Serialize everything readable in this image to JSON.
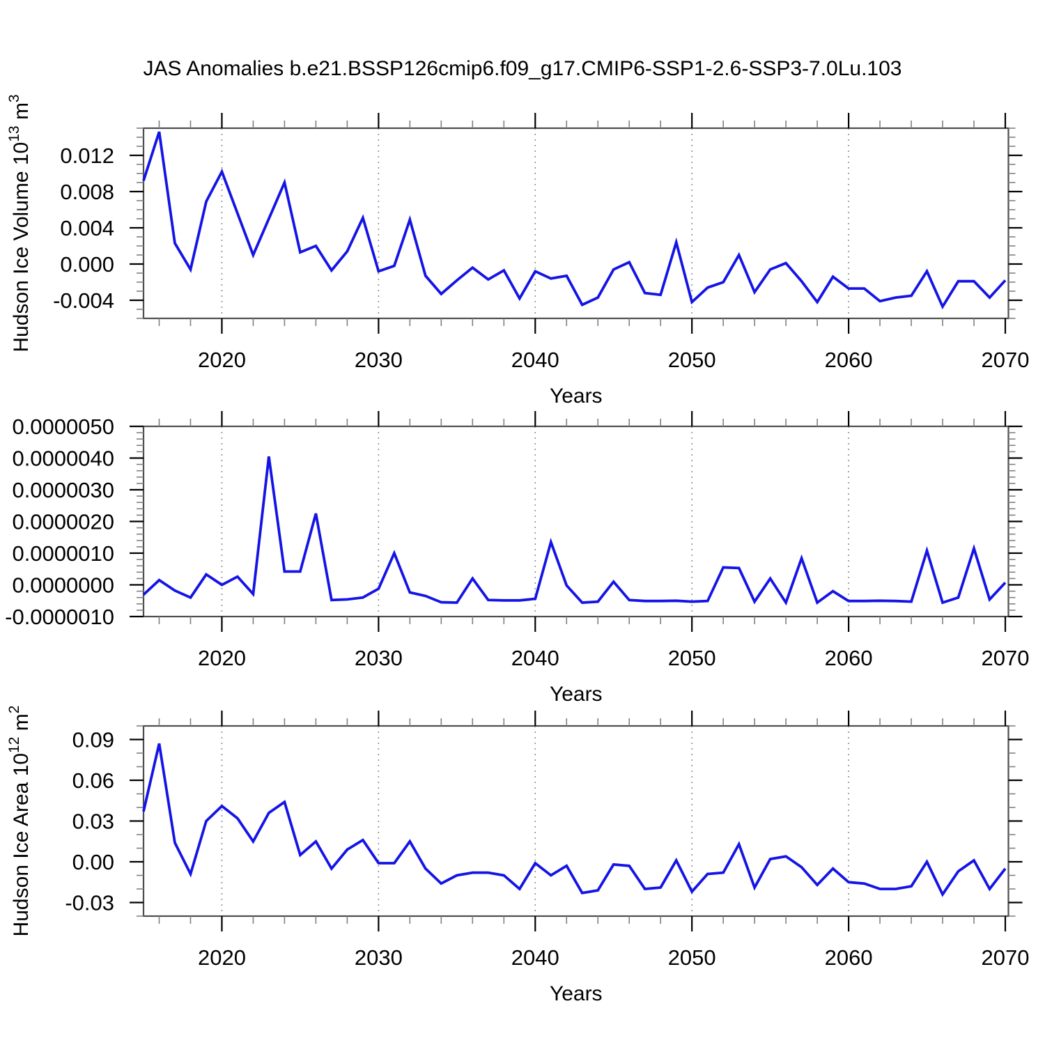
{
  "title": "JAS Anomalies b.e21.BSSP126cmip6.f09_g17.CMIP6-SSP1-2.6-SSP3-7.0Lu.103",
  "colors": {
    "line": "#1414e6",
    "frame": "#4d4d4d",
    "tick_major": "#000000",
    "tick_minor": "#808080",
    "grid": "#909090",
    "text": "#000000",
    "background": "#ffffff"
  },
  "x_axis": {
    "label": "Years",
    "range": [
      2015,
      2070.2
    ],
    "major_ticks": [
      2020,
      2030,
      2040,
      2050,
      2060,
      2070
    ],
    "minor_step": 2,
    "gridlines": [
      2020,
      2030,
      2040,
      2050,
      2060
    ]
  },
  "years": [
    2015,
    2016,
    2017,
    2018,
    2019,
    2020,
    2021,
    2022,
    2023,
    2024,
    2025,
    2026,
    2027,
    2028,
    2029,
    2030,
    2031,
    2032,
    2033,
    2034,
    2035,
    2036,
    2037,
    2038,
    2039,
    2040,
    2041,
    2042,
    2043,
    2044,
    2045,
    2046,
    2047,
    2048,
    2049,
    2050,
    2051,
    2052,
    2053,
    2054,
    2055,
    2056,
    2057,
    2058,
    2059,
    2060,
    2061,
    2062,
    2063,
    2064,
    2065,
    2066,
    2067,
    2068,
    2069,
    2070
  ],
  "chart_data": [
    {
      "type": "line",
      "name": "hudson-ice-volume",
      "ylabel": "Hudson Ice Volume 10^13 m^3",
      "ylabel_parts": [
        {
          "t": "Hudson Ice Volume 10"
        },
        {
          "t": "13",
          "sup": true
        },
        {
          "t": " m"
        },
        {
          "t": "3",
          "sup": true
        }
      ],
      "xlabel": "Years",
      "ylim": [
        -0.006,
        0.015
      ],
      "yticks": [
        {
          "v": 0.012,
          "label": "0.012"
        },
        {
          "v": 0.008,
          "label": "0.008"
        },
        {
          "v": 0.004,
          "label": "0.004"
        },
        {
          "v": 0.0,
          "label": "0.000"
        },
        {
          "v": -0.004,
          "label": "-0.004"
        }
      ],
      "y_minor_step": 0.001,
      "values": [
        0.0092,
        0.0146,
        0.0023,
        -0.0006,
        0.0069,
        0.0102,
        0.0056,
        0.001,
        0.005,
        0.009,
        0.0013,
        0.002,
        -0.0007,
        0.0014,
        0.0051,
        -0.0008,
        -0.0002,
        0.0049,
        -0.0013,
        -0.0033,
        -0.0018,
        -0.0004,
        -0.0017,
        -0.0007,
        -0.0038,
        -0.0008,
        -0.0016,
        -0.0013,
        -0.0045,
        -0.0037,
        -0.0006,
        0.0002,
        -0.0032,
        -0.0034,
        0.0024,
        -0.0042,
        -0.0026,
        -0.002,
        0.001,
        -0.0031,
        -0.0006,
        0.0001,
        -0.0019,
        -0.0042,
        -0.0014,
        -0.0027,
        -0.0027,
        -0.0041,
        -0.0037,
        -0.0035,
        -0.0008,
        -0.0047,
        -0.0019,
        -0.0019,
        -0.0037,
        -0.0018
      ]
    },
    {
      "type": "line",
      "name": "hudson-ice-middle-variable",
      "ylabel": "",
      "ylabel_parts": [],
      "xlabel": "Years",
      "ylim": [
        -1e-06,
        5e-06
      ],
      "yticks": [
        {
          "v": 5e-06,
          "label": "0.0000050"
        },
        {
          "v": 4e-06,
          "label": "0.0000040"
        },
        {
          "v": 3e-06,
          "label": "0.0000030"
        },
        {
          "v": 2e-06,
          "label": "0.0000020"
        },
        {
          "v": 1e-06,
          "label": "0.0000010"
        },
        {
          "v": 0.0,
          "label": "0.0000000"
        },
        {
          "v": -1e-06,
          "label": "-0.0000010"
        }
      ],
      "y_minor_step": 2e-07,
      "values": [
        -3.1e-07,
        1.5e-07,
        -1.8e-07,
        -4e-07,
        3.3e-07,
        0.0,
        2.6e-07,
        -2.9e-07,
        4.05e-06,
        4.2e-07,
        4.2e-07,
        2.25e-06,
        -4.8e-07,
        -4.6e-07,
        -4e-07,
        -1.2e-07,
        1e-06,
        -2.4e-07,
        -3.5e-07,
        -5.5e-07,
        -5.6e-07,
        2e-07,
        -4.8e-07,
        -4.9e-07,
        -4.9e-07,
        -4.4e-07,
        1.35e-06,
        -2e-08,
        -5.6e-07,
        -5.3e-07,
        1e-07,
        -4.8e-07,
        -5.1e-07,
        -5.1e-07,
        -5e-07,
        -5.3e-07,
        -5.1e-07,
        5.5e-07,
        5.3e-07,
        -5.3e-07,
        2e-07,
        -5.6e-07,
        8.4e-07,
        -5.6e-07,
        -2e-07,
        -5.1e-07,
        -5.1e-07,
        -5e-07,
        -5.1e-07,
        -5.3e-07,
        1.08e-06,
        -5.6e-07,
        -4e-07,
        1.15e-06,
        -4.6e-07,
        7e-08
      ]
    },
    {
      "type": "line",
      "name": "hudson-ice-area",
      "ylabel": "Hudson Ice Area 10^12 m^2",
      "ylabel_parts": [
        {
          "t": "Hudson Ice Area 10"
        },
        {
          "t": "12",
          "sup": true
        },
        {
          "t": " m"
        },
        {
          "t": "2",
          "sup": true
        }
      ],
      "xlabel": "Years",
      "ylim": [
        -0.04,
        0.1
      ],
      "yticks": [
        {
          "v": 0.09,
          "label": "0.09"
        },
        {
          "v": 0.06,
          "label": "0.06"
        },
        {
          "v": 0.03,
          "label": "0.03"
        },
        {
          "v": 0.0,
          "label": "0.00"
        },
        {
          "v": -0.03,
          "label": "-0.03"
        }
      ],
      "y_minor_step": 0.01,
      "values": [
        0.037,
        0.087,
        0.014,
        -0.009,
        0.03,
        0.041,
        0.032,
        0.015,
        0.036,
        0.044,
        0.005,
        0.015,
        -0.005,
        0.009,
        0.016,
        -0.001,
        -0.001,
        0.015,
        -0.005,
        -0.016,
        -0.01,
        -0.008,
        -0.008,
        -0.01,
        -0.02,
        -0.001,
        -0.01,
        -0.003,
        -0.023,
        -0.021,
        -0.002,
        -0.003,
        -0.02,
        -0.019,
        0.001,
        -0.022,
        -0.009,
        -0.008,
        0.013,
        -0.019,
        0.002,
        0.004,
        -0.004,
        -0.017,
        -0.005,
        -0.015,
        -0.016,
        -0.02,
        -0.02,
        -0.018,
        0.0,
        -0.024,
        -0.007,
        0.001,
        -0.02,
        -0.005
      ]
    }
  ]
}
